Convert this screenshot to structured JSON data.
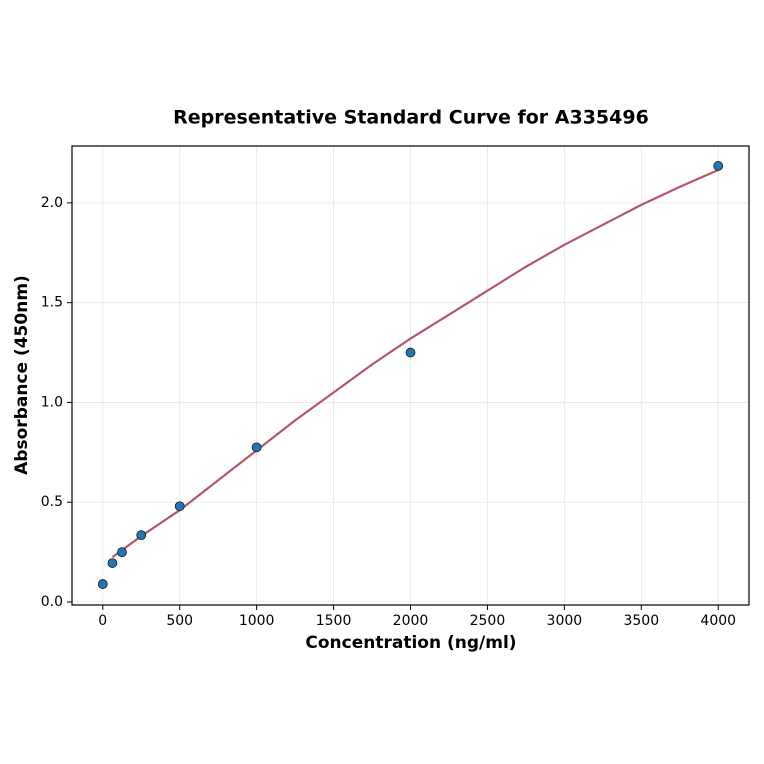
{
  "chart_data": {
    "type": "scatter",
    "title": "Representative Standard Curve for A335496",
    "x_label": "Concentration (ng/ml)",
    "y_label": "Absorbance (450nm)",
    "xlim": [
      -200,
      4200
    ],
    "ylim": [
      -0.015,
      2.285
    ],
    "xticks": [
      0,
      500,
      1000,
      1500,
      2000,
      2500,
      3000,
      3500,
      4000
    ],
    "yticks": [
      {
        "value": 0,
        "label": "0.0"
      },
      {
        "value": 0.5,
        "label": "0.5"
      },
      {
        "value": 1,
        "label": "1.0"
      },
      {
        "value": 1.5,
        "label": "1.5"
      },
      {
        "value": 2,
        "label": "2.0"
      }
    ],
    "grid": true,
    "series": [
      {
        "type": "scatter",
        "color": "#1f77b4",
        "x": [
          0,
          62.5,
          125,
          250,
          500,
          1000,
          2000,
          4000
        ],
        "values": [
          0.09,
          0.195,
          0.25,
          0.335,
          0.48,
          0.775,
          1.25,
          2.185
        ]
      },
      {
        "type": "line",
        "color": "#b5566a",
        "x": [
          62.5,
          250,
          500,
          750,
          1000,
          1250,
          1500,
          1750,
          2000,
          2250,
          2500,
          2750,
          3000,
          3250,
          3500,
          3750,
          4000
        ],
        "values": [
          0.225,
          0.33,
          0.46,
          0.61,
          0.76,
          0.91,
          1.05,
          1.19,
          1.32,
          1.44,
          1.56,
          1.68,
          1.79,
          1.89,
          1.99,
          2.08,
          2.165
        ]
      }
    ]
  }
}
